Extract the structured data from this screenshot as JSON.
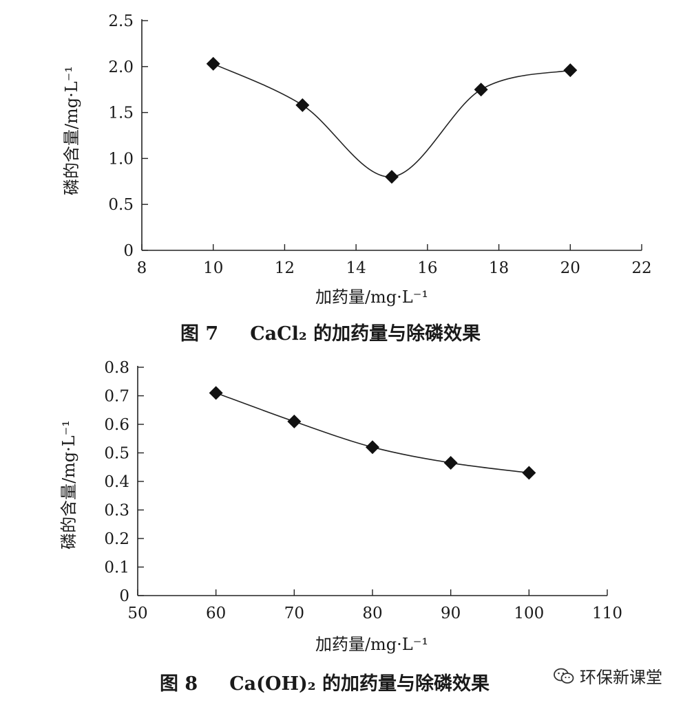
{
  "chart_data": [
    {
      "type": "line",
      "xlabel": "加药量/mg·L⁻¹",
      "ylabel": "磷的含量/mg·L⁻¹",
      "xlim": [
        8,
        22
      ],
      "ylim": [
        0,
        2.5
      ],
      "xticks": [
        "8",
        "10",
        "12",
        "14",
        "16",
        "18",
        "20",
        "22"
      ],
      "yticks": [
        "0",
        "0.5",
        "1.0",
        "1.5",
        "2.0",
        "2.5"
      ],
      "series": [
        {
          "x": [
            10,
            12.5,
            15,
            17.5,
            20
          ],
          "values": [
            2.03,
            1.58,
            0.8,
            1.75,
            1.96
          ]
        }
      ],
      "grid": false
    },
    {
      "type": "line",
      "xlabel": "加药量/mg·L⁻¹",
      "ylabel": "磷的含量/mg·L⁻¹",
      "xlim": [
        50,
        110
      ],
      "ylim": [
        0,
        0.8
      ],
      "xticks": [
        "50",
        "60",
        "70",
        "80",
        "90",
        "100",
        "110"
      ],
      "yticks": [
        "0",
        "0.1",
        "0.2",
        "0.3",
        "0.4",
        "0.5",
        "0.6",
        "0.7",
        "0.8"
      ],
      "series": [
        {
          "x": [
            60,
            70,
            80,
            90,
            100
          ],
          "values": [
            0.71,
            0.61,
            0.52,
            0.465,
            0.43
          ]
        }
      ],
      "grid": false
    }
  ],
  "captions": [
    {
      "num": "图 7",
      "text": "CaCl₂ 的加药量与除磷效果"
    },
    {
      "num": "图 8",
      "text": "Ca(OH)₂ 的加药量与除磷效果"
    }
  ],
  "watermark": {
    "text": "环保新课堂",
    "icon": "wechat-icon"
  }
}
